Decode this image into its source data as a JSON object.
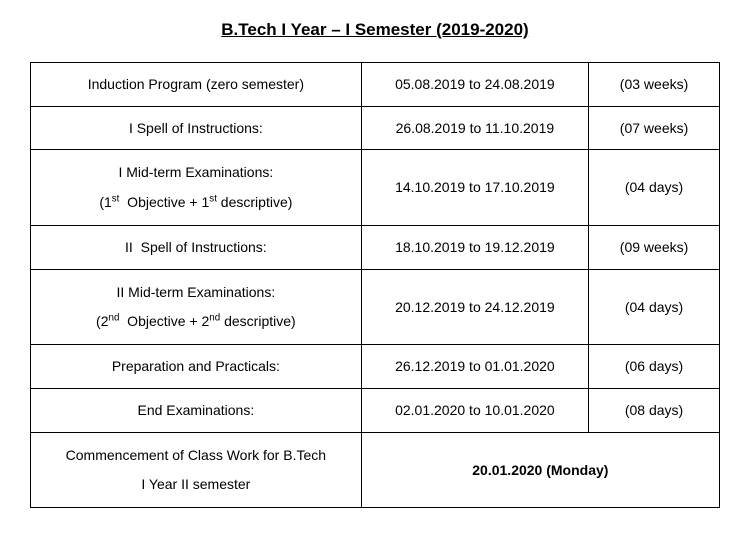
{
  "title": "B.Tech I Year – I Semester (2019-2020)",
  "rows": [
    {
      "label_html": "Induction Program (zero semester)",
      "dates": "05.08.2019 to 24.08.2019",
      "duration": "(03 weeks)",
      "multiline": false
    },
    {
      "label_html": "I Spell of Instructions:",
      "dates": "26.08.2019 to 11.10.2019",
      "duration": "(07 weeks)",
      "multiline": false
    },
    {
      "label_html": "I Mid-term Examinations:<br>(1<sup>st</sup>&nbsp; Objective + 1<sup>st</sup> descriptive)",
      "dates": "14.10.2019 to 17.10.2019",
      "duration": "(04 days)",
      "multiline": true
    },
    {
      "label_html": "II &nbsp;Spell of Instructions:",
      "dates": "18.10.2019 to 19.12.2019",
      "duration": "(09 weeks)",
      "multiline": false
    },
    {
      "label_html": "II Mid-term Examinations:<br>(2<sup>nd</sup>&nbsp; Objective + 2<sup>nd</sup> descriptive)",
      "dates": "20.12.2019 to 24.12.2019",
      "duration": "(04 days)",
      "multiline": true
    },
    {
      "label_html": "Preparation and Practicals:",
      "dates": "26.12.2019 to 01.01.2020",
      "duration": "(06 days)",
      "multiline": false
    },
    {
      "label_html": "End Examinations:",
      "dates": "02.01.2020 to 10.01.2020",
      "duration": "(08 days)",
      "multiline": false
    }
  ],
  "footer": {
    "label_html": "Commencement of Class Work for B.Tech<br>I Year II semester",
    "value": "20.01.2020 (Monday)"
  },
  "styling": {
    "font_family": "Comic Sans MS",
    "title_fontsize": 17,
    "cell_fontsize": 14,
    "border_color": "#000000",
    "background_color": "#ffffff",
    "text_color": "#000000",
    "column_widths_pct": [
      48,
      33,
      19
    ]
  }
}
